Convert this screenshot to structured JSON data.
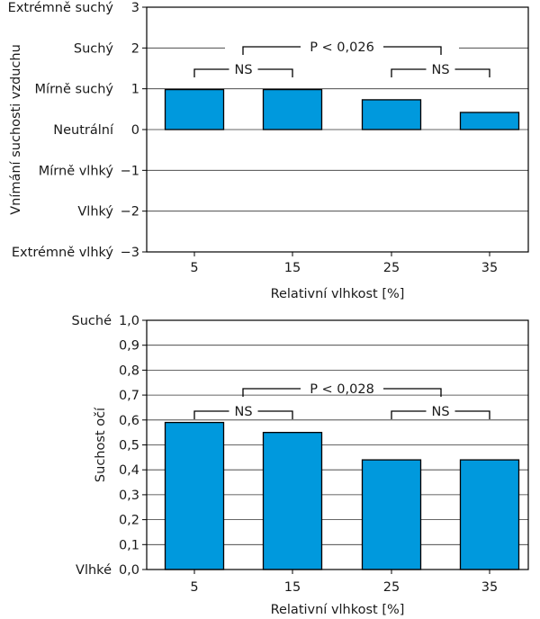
{
  "chart_data": [
    {
      "type": "bar",
      "categories": [
        "5",
        "15",
        "25",
        "35"
      ],
      "values": [
        0.98,
        0.98,
        0.73,
        0.42
      ],
      "ylim": [
        -3,
        3
      ],
      "yticks": [
        3,
        2,
        1,
        0,
        -1,
        -2,
        -3
      ],
      "ytick_labels": [
        "3",
        "2",
        "1",
        "0",
        "−1",
        "−2",
        "−3"
      ],
      "ycategory_labels": [
        "Extrémně suchý",
        "Suchý",
        "Mírně suchý",
        "Neutrální",
        "Mírně vlhký",
        "Vlhký",
        "Extrémně vlhký"
      ],
      "xlabel": "Relativní vlhkost [%]",
      "ylabel": "Vnímání suchosti vzduchu",
      "grid": true,
      "bar_color": "#0099dd",
      "annotations": [
        {
          "label": "P < 0,026",
          "from": "15",
          "to": "35"
        },
        {
          "label": "NS",
          "from": "5",
          "to": "15"
        },
        {
          "label": "NS",
          "from": "25",
          "to": "35"
        }
      ]
    },
    {
      "type": "bar",
      "categories": [
        "5",
        "15",
        "25",
        "35"
      ],
      "values": [
        0.59,
        0.55,
        0.44,
        0.44
      ],
      "ylim": [
        0,
        1
      ],
      "yticks": [
        1.0,
        0.9,
        0.8,
        0.7,
        0.6,
        0.5,
        0.4,
        0.3,
        0.2,
        0.1,
        0.0
      ],
      "ytick_labels": [
        "1,0",
        "0,9",
        "0,8",
        "0,7",
        "0,6",
        "0,5",
        "0,4",
        "0,3",
        "0,2",
        "0,1",
        "0,0"
      ],
      "ycategory_labels": [
        "Suché",
        "Vlhké"
      ],
      "xlabel": "Relativní vlhkost [%]",
      "ylabel": "Suchost očí",
      "grid": true,
      "bar_color": "#0099dd",
      "annotations": [
        {
          "label": "P < 0,028",
          "from": "15",
          "to": "35"
        },
        {
          "label": "NS",
          "from": "5",
          "to": "15"
        },
        {
          "label": "NS",
          "from": "25",
          "to": "35"
        }
      ]
    }
  ]
}
